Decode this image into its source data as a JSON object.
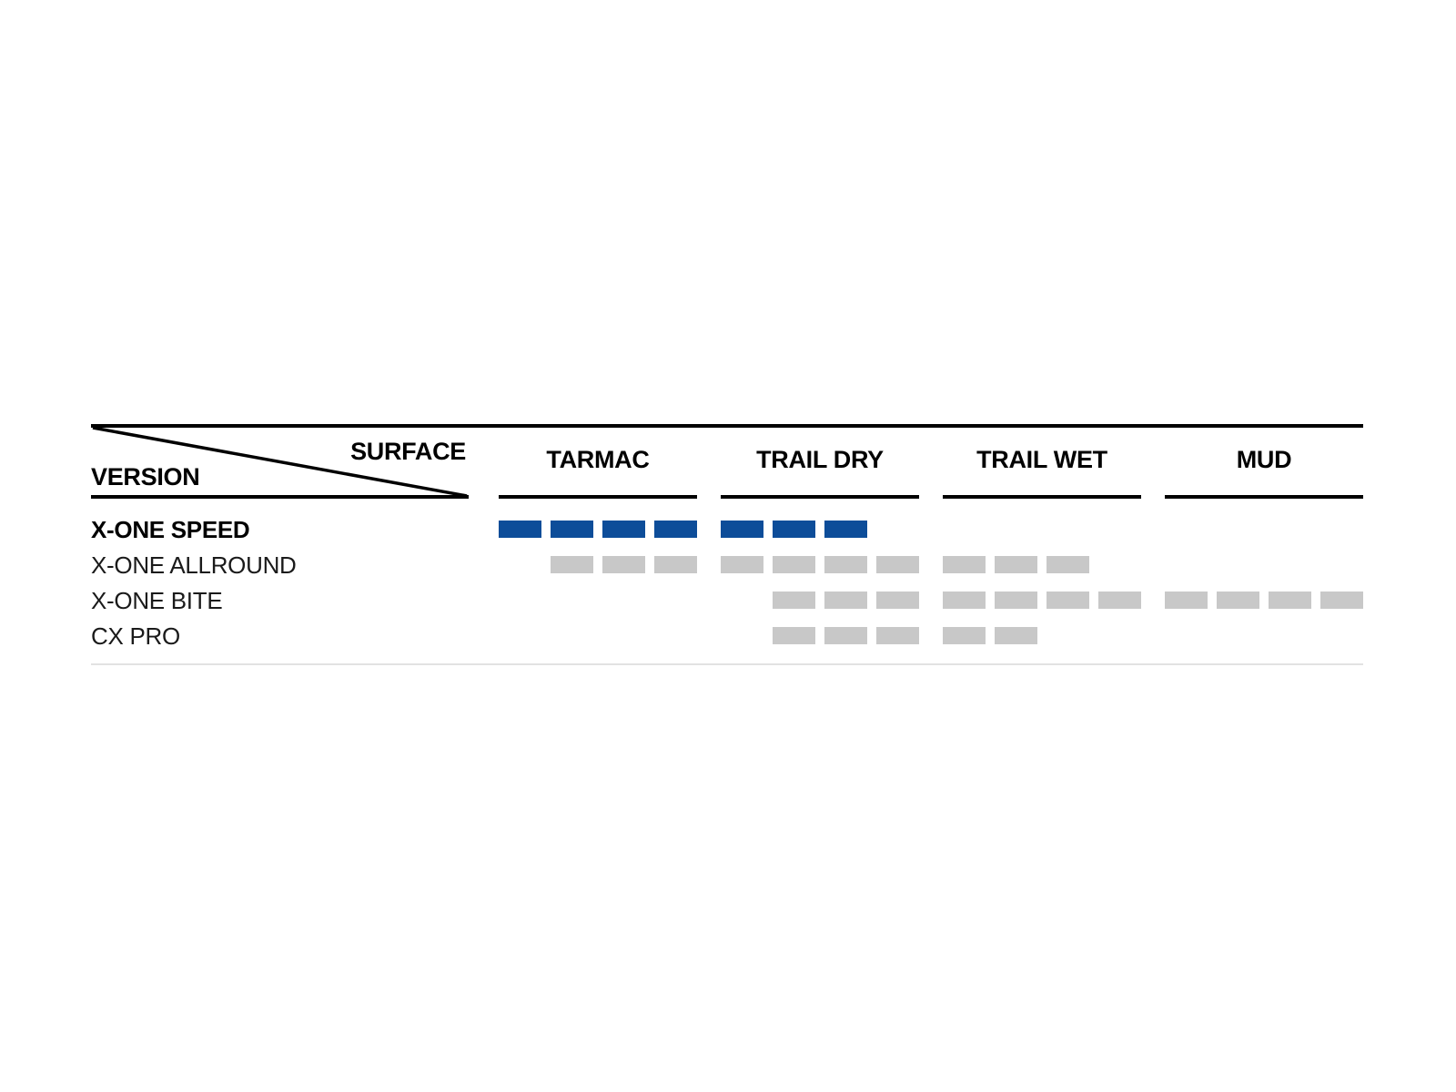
{
  "chart_data": {
    "type": "table",
    "title": "",
    "corner_headers": {
      "top_right": "SURFACE",
      "bottom_left": "VERSION"
    },
    "columns": [
      "TARMAC",
      "TRAIL DRY",
      "TRAIL WET",
      "MUD"
    ],
    "rating_scale_max": 4,
    "rows": [
      {
        "label": "X-ONE SPEED",
        "emphasis": true,
        "ratings": {
          "TARMAC": 4,
          "TRAIL DRY": 3,
          "TRAIL WET": 0,
          "MUD": 0
        },
        "slots": [
          [
            1,
            1,
            1,
            1
          ],
          [
            1,
            1,
            1,
            0
          ],
          [
            0,
            0,
            0,
            0
          ],
          [
            0,
            0,
            0,
            0
          ]
        ]
      },
      {
        "label": "X-ONE ALLROUND",
        "emphasis": false,
        "ratings": {
          "TARMAC": 3,
          "TRAIL DRY": 4,
          "TRAIL WET": 3,
          "MUD": 0
        },
        "slots": [
          [
            0,
            1,
            1,
            1
          ],
          [
            1,
            1,
            1,
            1
          ],
          [
            1,
            1,
            1,
            0
          ],
          [
            0,
            0,
            0,
            0
          ]
        ]
      },
      {
        "label": "X-ONE BITE",
        "emphasis": false,
        "ratings": {
          "TARMAC": 0,
          "TRAIL DRY": 3,
          "TRAIL WET": 4,
          "MUD": 4
        },
        "slots": [
          [
            0,
            0,
            0,
            0
          ],
          [
            0,
            1,
            1,
            1
          ],
          [
            1,
            1,
            1,
            1
          ],
          [
            1,
            1,
            1,
            1
          ]
        ]
      },
      {
        "label": "CX PRO",
        "emphasis": false,
        "ratings": {
          "TARMAC": 0,
          "TRAIL DRY": 3,
          "TRAIL WET": 2,
          "MUD": 0
        },
        "slots": [
          [
            0,
            0,
            0,
            0
          ],
          [
            0,
            1,
            1,
            1
          ],
          [
            1,
            1,
            0,
            0
          ],
          [
            0,
            0,
            0,
            0
          ]
        ]
      }
    ],
    "colors": {
      "emphasis_bar": "#0d4d99",
      "default_bar": "#c8c8c8",
      "rule_line": "#000000",
      "bottom_divider": "#e2e2e2",
      "background": "#ffffff"
    },
    "legend_position": "none",
    "grid": false
  }
}
